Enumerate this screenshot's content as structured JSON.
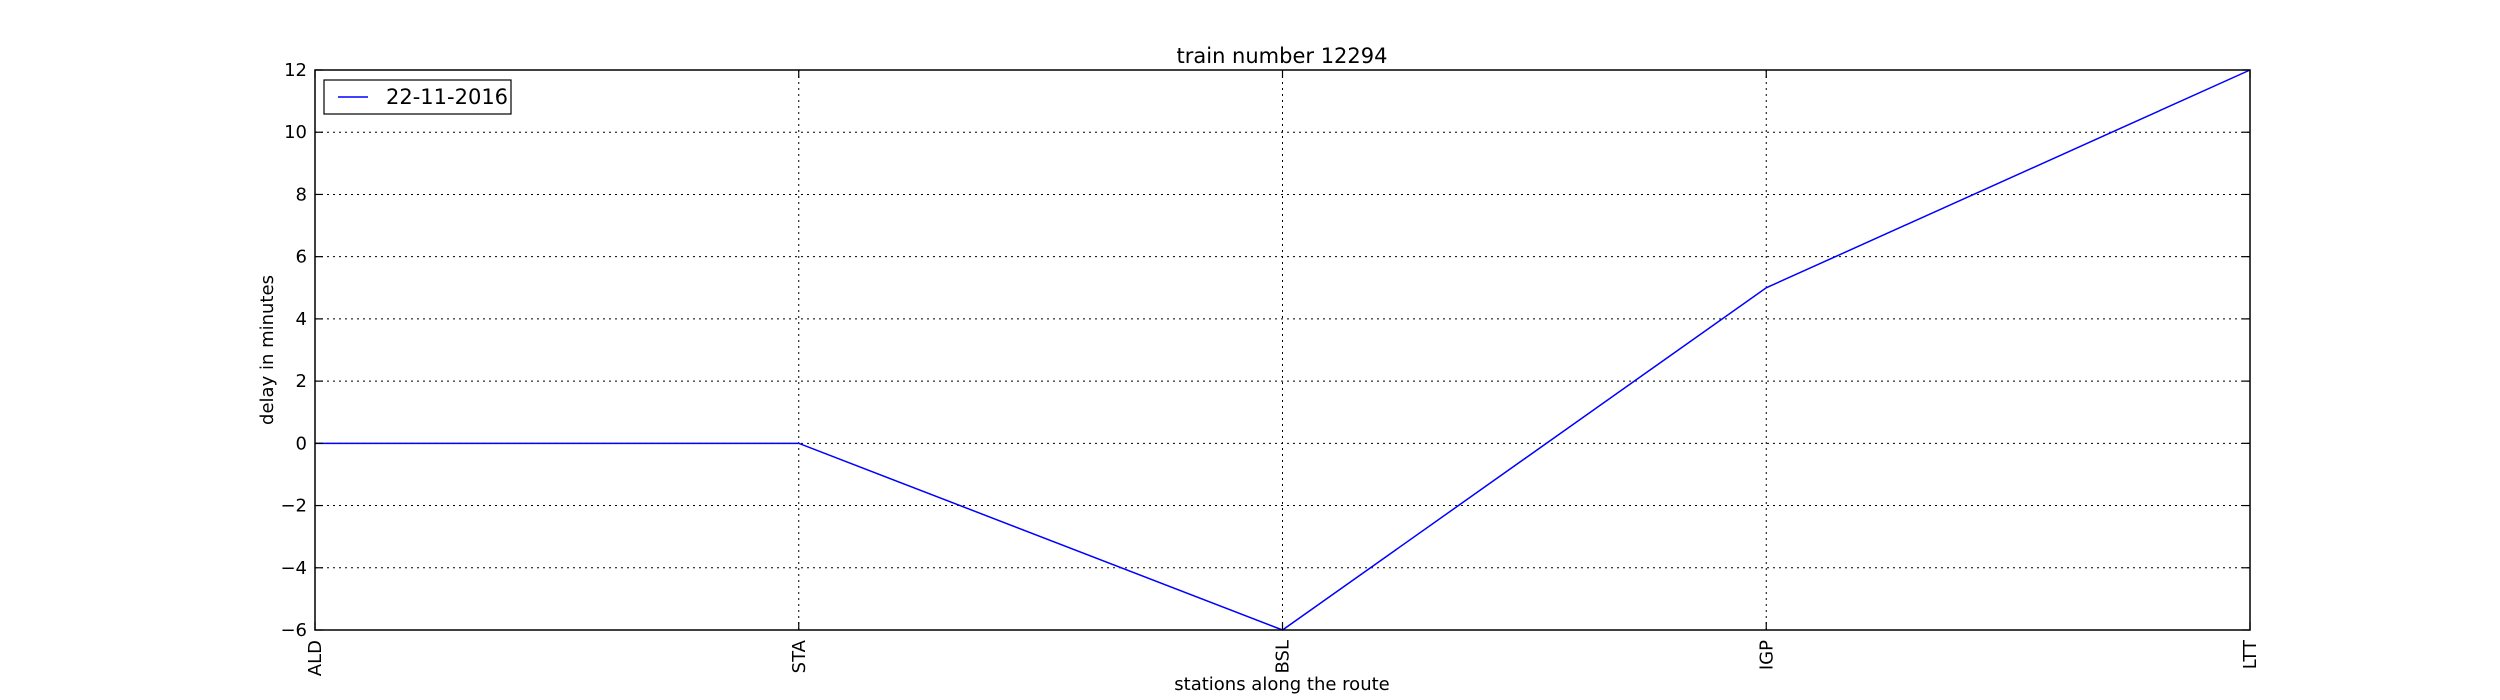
{
  "chart_data": {
    "type": "line",
    "title": "train number 12294",
    "xlabel": "stations along the route",
    "ylabel": "delay in minutes",
    "categories": [
      "ALD",
      "STA",
      "BSL",
      "IGP",
      "LTT"
    ],
    "series": [
      {
        "name": "22-11-2016",
        "color": "#0000ff",
        "values": [
          0,
          0,
          -6,
          5,
          12
        ]
      }
    ],
    "ylim": [
      -6,
      12
    ],
    "yticks": [
      -6,
      -4,
      -2,
      0,
      2,
      4,
      6,
      8,
      10,
      12
    ],
    "ytick_labels": [
      "−6",
      "−4",
      "−2",
      "0",
      "2",
      "4",
      "6",
      "8",
      "10",
      "12"
    ],
    "grid": true,
    "legend_position": "top-left"
  }
}
